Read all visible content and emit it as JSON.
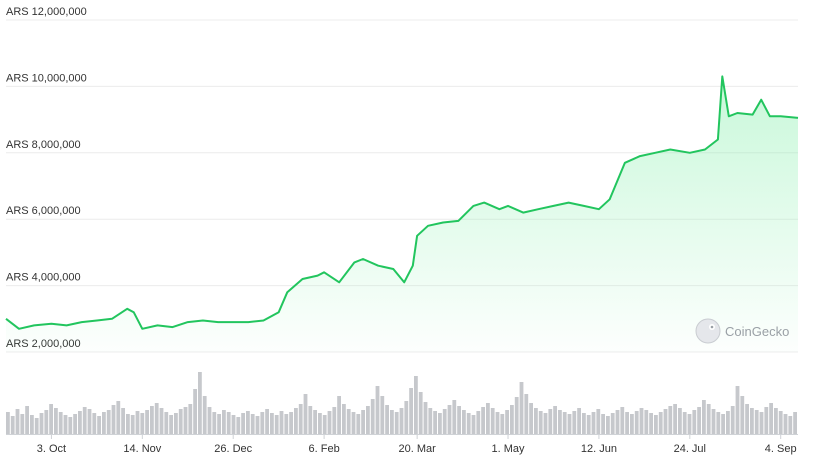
{
  "watermark": {
    "text": "CoinGecko",
    "icon": "gecko-logo-icon"
  },
  "chart_data": {
    "type": "area",
    "currency_prefix": "ARS",
    "y_ticks": [
      "ARS 12,000,000",
      "ARS 10,000,000",
      "ARS 8,000,000",
      "ARS 6,000,000",
      "ARS 4,000,000",
      "ARS 2,000,000"
    ],
    "y_tick_values": [
      12000000,
      10000000,
      8000000,
      6000000,
      4000000,
      2000000
    ],
    "ylim": [
      2000000,
      12000000
    ],
    "x_ticks": [
      "3. Oct",
      "14. Nov",
      "26. Dec",
      "6. Feb",
      "20. Mar",
      "1. May",
      "12. Jun",
      "24. Jul",
      "4. Sep"
    ],
    "x_tick_dates": [
      "2023-10-03",
      "2023-11-14",
      "2023-12-26",
      "2024-02-06",
      "2024-03-20",
      "2024-05-01",
      "2024-06-12",
      "2024-07-24",
      "2024-09-04"
    ],
    "xlim": [
      "2023-09-12",
      "2024-09-12"
    ],
    "grid": true,
    "line_color": "#22c55e",
    "fill_color": "#86efac",
    "volume_color": "#c6c8cc",
    "series": [
      {
        "x": [
          "2023-09-12",
          "2023-09-18",
          "2023-09-25",
          "2023-10-03",
          "2023-10-10",
          "2023-10-17",
          "2023-10-24",
          "2023-10-31",
          "2023-11-07",
          "2023-11-10",
          "2023-11-14",
          "2023-11-21",
          "2023-11-28",
          "2023-12-05",
          "2023-12-12",
          "2023-12-19",
          "2023-12-26",
          "2024-01-02",
          "2024-01-09",
          "2024-01-16",
          "2024-01-20",
          "2024-01-27",
          "2024-02-03",
          "2024-02-06",
          "2024-02-13",
          "2024-02-20",
          "2024-02-24",
          "2024-03-02",
          "2024-03-09",
          "2024-03-14",
          "2024-03-18",
          "2024-03-20",
          "2024-03-25",
          "2024-04-01",
          "2024-04-08",
          "2024-04-15",
          "2024-04-20",
          "2024-04-27",
          "2024-05-01",
          "2024-05-08",
          "2024-05-15",
          "2024-05-22",
          "2024-05-29",
          "2024-06-05",
          "2024-06-12",
          "2024-06-17",
          "2024-06-24",
          "2024-07-01",
          "2024-07-08",
          "2024-07-15",
          "2024-07-24",
          "2024-07-31",
          "2024-08-06",
          "2024-08-08",
          "2024-08-11",
          "2024-08-15",
          "2024-08-22",
          "2024-08-26",
          "2024-08-30",
          "2024-09-04",
          "2024-09-12"
        ],
        "values": [
          3000000,
          2700000,
          2800000,
          2850000,
          2800000,
          2900000,
          2950000,
          3000000,
          3300000,
          3200000,
          2700000,
          2800000,
          2750000,
          2900000,
          2950000,
          2900000,
          2900000,
          2900000,
          2950000,
          3200000,
          3800000,
          4200000,
          4300000,
          4400000,
          4100000,
          4700000,
          4800000,
          4600000,
          4500000,
          4100000,
          4600000,
          5500000,
          5800000,
          5900000,
          5950000,
          6400000,
          6500000,
          6300000,
          6400000,
          6200000,
          6300000,
          6400000,
          6500000,
          6400000,
          6300000,
          6600000,
          7700000,
          7900000,
          8000000,
          8100000,
          8000000,
          8100000,
          8400000,
          10300000,
          9100000,
          9200000,
          9150000,
          9600000,
          9100000,
          9100000,
          9050000
        ]
      }
    ],
    "volume_values": [
      22,
      18,
      25,
      20,
      28,
      19,
      16,
      21,
      24,
      30,
      26,
      22,
      19,
      17,
      20,
      23,
      27,
      25,
      21,
      18,
      22,
      24,
      29,
      33,
      26,
      20,
      19,
      23,
      21,
      24,
      28,
      31,
      26,
      22,
      19,
      21,
      25,
      27,
      30,
      45,
      62,
      38,
      27,
      22,
      20,
      24,
      22,
      19,
      17,
      21,
      23,
      20,
      18,
      22,
      25,
      21,
      19,
      23,
      20,
      22,
      26,
      30,
      40,
      28,
      24,
      21,
      19,
      23,
      27,
      38,
      30,
      25,
      22,
      20,
      24,
      28,
      35,
      48,
      38,
      29,
      24,
      22,
      26,
      33,
      46,
      58,
      42,
      32,
      26,
      23,
      21,
      25,
      29,
      34,
      28,
      24,
      21,
      19,
      23,
      27,
      31,
      26,
      22,
      20,
      24,
      29,
      37,
      52,
      40,
      31,
      26,
      23,
      21,
      25,
      28,
      24,
      22,
      20,
      23,
      26,
      21,
      19,
      22,
      25,
      20,
      18,
      21,
      24,
      27,
      22,
      20,
      23,
      26,
      24,
      21,
      19,
      22,
      25,
      28,
      30,
      26,
      22,
      20,
      24,
      27,
      34,
      30,
      25,
      22,
      20,
      23,
      28,
      48,
      38,
      30,
      26,
      24,
      22,
      27,
      31,
      26,
      23,
      20,
      18,
      22
    ]
  }
}
